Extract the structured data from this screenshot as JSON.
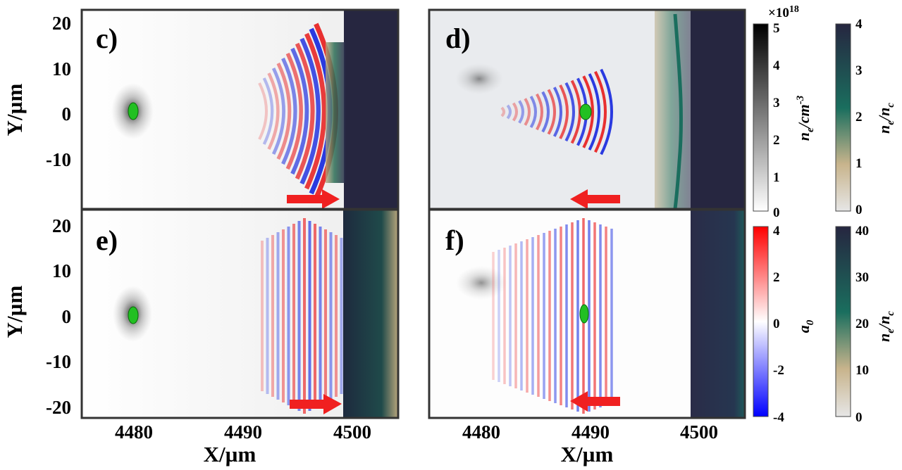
{
  "chart_data": [
    {
      "type": "heatmap",
      "panel_label": "c)",
      "xlabel": "",
      "ylabel": "Y/µm",
      "xlim": [
        4475.5,
        4504.5
      ],
      "ylim": [
        -22,
        23
      ],
      "yticks": [
        "20",
        "10",
        "0",
        "-10"
      ],
      "beam_direction": "right"
    },
    {
      "type": "heatmap",
      "panel_label": "d)",
      "xlabel": "",
      "ylabel": "",
      "xlim": [
        4475.5,
        4504.5
      ],
      "ylim": [
        -22,
        23
      ],
      "beam_direction": "left"
    },
    {
      "type": "heatmap",
      "panel_label": "e)",
      "xlabel": "X/µm",
      "ylabel": "Y/µm",
      "xlim": [
        4475.5,
        4504.5
      ],
      "ylim": [
        -22,
        23
      ],
      "xticks": [
        "4480",
        "4490",
        "4500"
      ],
      "yticks": [
        "20",
        "10",
        "0",
        "-10",
        "-20"
      ],
      "beam_direction": "right"
    },
    {
      "type": "heatmap",
      "panel_label": "f)",
      "xlabel": "X/µm",
      "ylabel": "",
      "xlim": [
        4475.5,
        4504.5
      ],
      "ylim": [
        -22,
        23
      ],
      "xticks": [
        "4480",
        "4490",
        "4500"
      ],
      "beam_direction": "left"
    }
  ],
  "colorbars": {
    "density": {
      "multiplier": "×10",
      "exponent": "18",
      "ticks": [
        "5",
        "4",
        "3",
        "2",
        "1",
        "0"
      ],
      "label": "n",
      "sub": "e",
      "unit": "/cm",
      "sup": "-3",
      "colors": [
        "#ffffff",
        "#000000"
      ]
    },
    "field": {
      "ticks": [
        "4",
        "2",
        "0",
        "-2",
        "-4"
      ],
      "label": "a",
      "sub": "0",
      "colors": [
        "#0000ff",
        "#ffffff",
        "#ff0000"
      ]
    },
    "ratio_top": {
      "ticks": [
        "4",
        "3",
        "2",
        "1",
        "0"
      ],
      "label": "n",
      "sub1": "e",
      "mid": "/n",
      "sub2": "c",
      "colors": [
        "#e6e6e6",
        "#c8b48c",
        "#1a6e5e",
        "#2a2a48"
      ]
    },
    "ratio_bottom": {
      "ticks": [
        "40",
        "30",
        "20",
        "10",
        "0"
      ],
      "label": "n",
      "sub1": "e",
      "mid": "/n",
      "sub2": "c",
      "colors": [
        "#e6e6e6",
        "#c8b48c",
        "#1a6e5e",
        "#2a2a48"
      ]
    }
  }
}
